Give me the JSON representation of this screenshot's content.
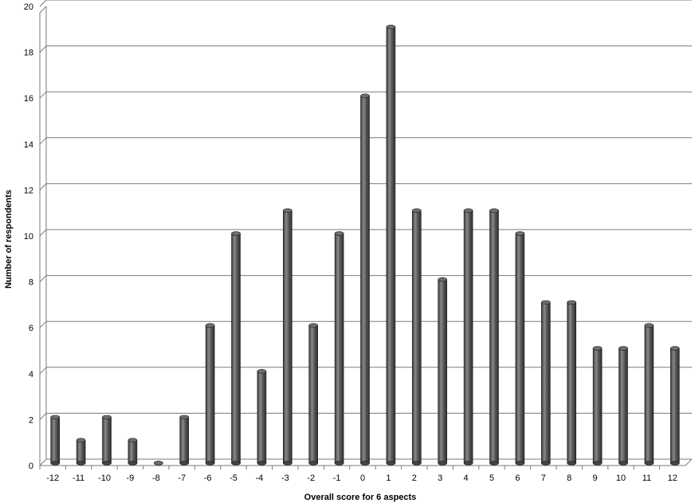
{
  "chart_data": {
    "type": "bar",
    "title": "",
    "xlabel": "Overall score for 6 aspects",
    "ylabel": "Number of respondents",
    "ylim": [
      0,
      20
    ],
    "yticks": [
      0,
      2,
      4,
      6,
      8,
      10,
      12,
      14,
      16,
      18,
      20
    ],
    "categories": [
      "-12",
      "-11",
      "-10",
      "-9",
      "-8",
      "-7",
      "-6",
      "-5",
      "-4",
      "-3",
      "-2",
      "-1",
      "0",
      "1",
      "2",
      "3",
      "4",
      "5",
      "6",
      "7",
      "8",
      "9",
      "10",
      "11",
      "12"
    ],
    "values": [
      2,
      1,
      2,
      1,
      0,
      2,
      6,
      10,
      4,
      11,
      6,
      10,
      16,
      19,
      11,
      8,
      11,
      11,
      10,
      7,
      7,
      5,
      5,
      6,
      5
    ],
    "grid": true,
    "legend": "none",
    "bar_style": "3d-cylinder",
    "colors": {
      "bar": "#5a5a5a",
      "gridline": "#7a7a7a",
      "axis": "#7a7a7a"
    }
  }
}
